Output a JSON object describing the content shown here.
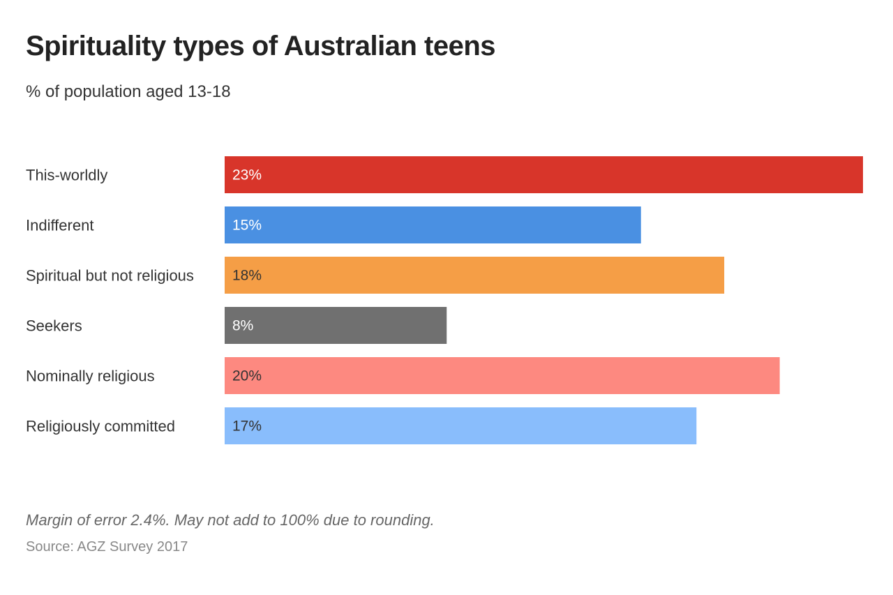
{
  "chart_data": {
    "type": "bar",
    "orientation": "horizontal",
    "title": "Spirituality types of Australian teens",
    "subtitle": "% of population aged 13-18",
    "xlabel": "",
    "ylabel": "",
    "categories": [
      "This-worldly",
      "Indifferent",
      "Spiritual but not religious",
      "Seekers",
      "Nominally religious",
      "Religiously committed"
    ],
    "values": [
      23,
      15,
      18,
      8,
      20,
      17
    ],
    "value_labels": [
      "23%",
      "15%",
      "18%",
      "8%",
      "20%",
      "17%"
    ],
    "colors": [
      "#d8352a",
      "#4a90e2",
      "#f59e46",
      "#707070",
      "#fd8980",
      "#89bdfc"
    ],
    "label_colors": [
      "#ffffff",
      "#ffffff",
      "#333333",
      "#ffffff",
      "#333333",
      "#333333"
    ],
    "xlim": [
      0,
      23
    ],
    "grid": false,
    "legend": "none",
    "note": "Margin of error 2.4%. May not add to 100% due to rounding.",
    "source": "Source: AGZ Survey 2017"
  }
}
